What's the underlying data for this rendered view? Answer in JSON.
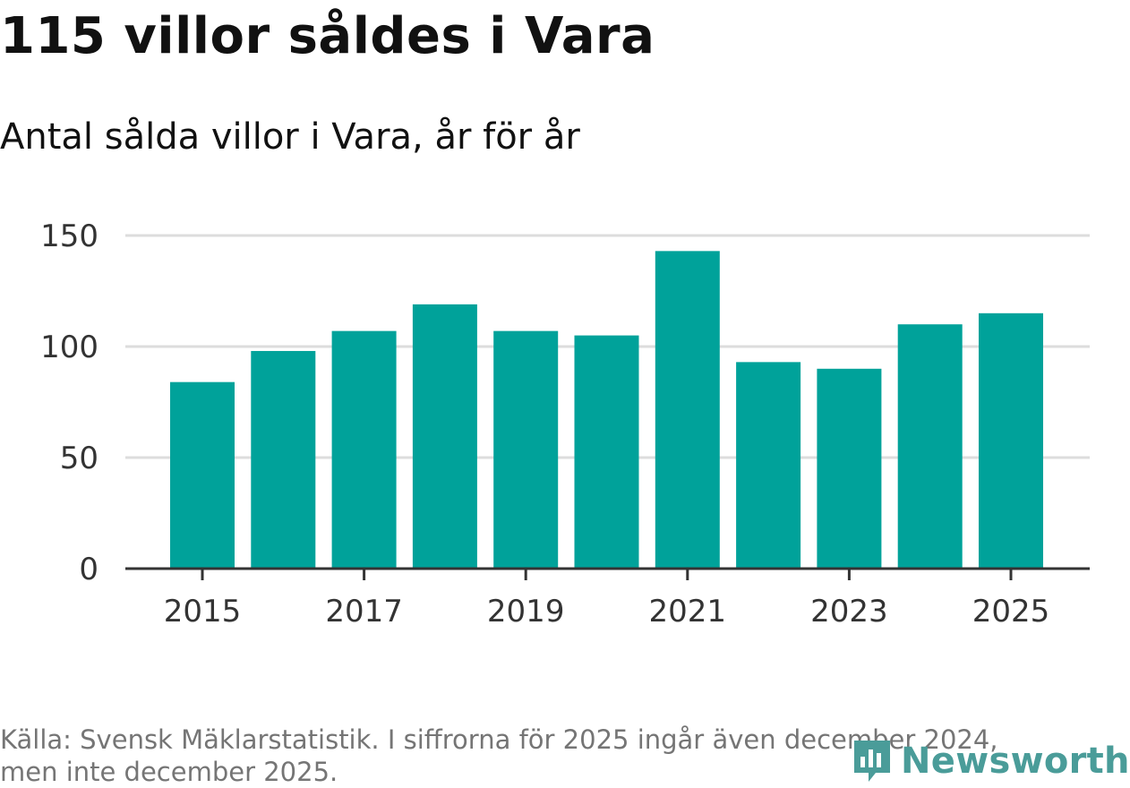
{
  "header": {
    "title": "115 villor såldes i Vara",
    "subtitle": "Antal sålda villor i Vara, år för år"
  },
  "chart_data": {
    "type": "bar",
    "title": "115 villor såldes i Vara",
    "subtitle": "Antal sålda villor i Vara, år för år",
    "categories": [
      "2015",
      "2016",
      "2017",
      "2018",
      "2019",
      "2020",
      "2021",
      "2022",
      "2023",
      "2024",
      "2025"
    ],
    "values": [
      84,
      98,
      107,
      119,
      107,
      105,
      143,
      93,
      90,
      110,
      115
    ],
    "xlabel": "",
    "ylabel": "",
    "ylim": [
      0,
      150
    ],
    "yticks": [
      0,
      50,
      100,
      150
    ],
    "xtick_labels": [
      "2015",
      "2017",
      "2019",
      "2021",
      "2023",
      "2025"
    ],
    "grid": true,
    "bar_color": "#00a29a",
    "grid_color": "#dddddd",
    "axis_color": "#333333"
  },
  "footer": {
    "source_line1": "Källa: Svensk Mäklarstatistik. I siffrorna för 2025 ingår även december 2024,",
    "source_line2": "men inte december 2025.",
    "logo_text": "Newsworthy",
    "logo_color": "#4a9c99"
  }
}
